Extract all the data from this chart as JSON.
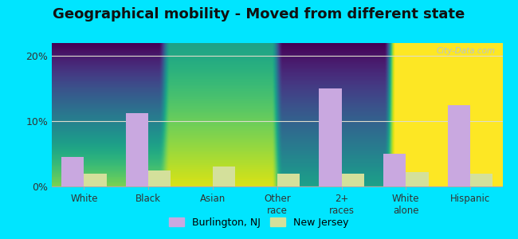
{
  "title": "Geographical mobility - Moved from different state",
  "categories": [
    "White",
    "Black",
    "Asian",
    "Other\nrace",
    "2+\nraces",
    "White\nalone",
    "Hispanic"
  ],
  "burlington_values": [
    4.5,
    11.2,
    0.0,
    0.0,
    15.0,
    5.0,
    12.5
  ],
  "nj_values": [
    2.0,
    2.5,
    3.0,
    2.0,
    2.0,
    2.2,
    2.0
  ],
  "burlington_color": "#c9a8e0",
  "nj_color": "#d4e09b",
  "ylim": [
    0,
    22
  ],
  "yticks": [
    0,
    10,
    20
  ],
  "ytick_labels": [
    "0%",
    "10%",
    "20%"
  ],
  "outer_bg": "#00e5ff",
  "legend_burlington": "Burlington, NJ",
  "legend_nj": "New Jersey",
  "bar_width": 0.35,
  "title_fontsize": 13
}
